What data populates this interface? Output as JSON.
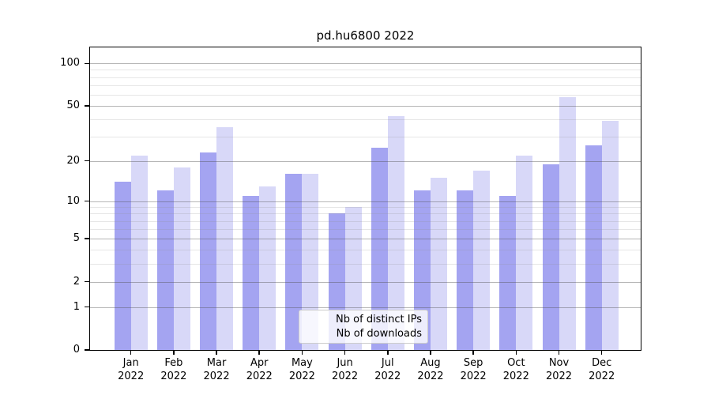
{
  "title": "pd.hu6800 2022",
  "chart_data": {
    "type": "bar",
    "title": "pd.hu6800 2022",
    "categories": [
      "Jan\n2022",
      "Feb\n2022",
      "Mar\n2022",
      "Apr\n2022",
      "May\n2022",
      "Jun\n2022",
      "Jul\n2022",
      "Aug\n2022",
      "Sep\n2022",
      "Oct\n2022",
      "Nov\n2022",
      "Dec\n2022"
    ],
    "series": [
      {
        "name": "Nb of distinct IPs",
        "key": "distinct-ips",
        "color": "#a4a4f1",
        "values": [
          14,
          12,
          23,
          11,
          16,
          8,
          25,
          12,
          12,
          11,
          19,
          26
        ]
      },
      {
        "name": "Nb of downloads",
        "key": "downloads",
        "color": "#d8d8f8",
        "values": [
          22,
          18,
          35,
          13,
          16,
          9,
          42,
          15,
          17,
          22,
          58,
          39
        ]
      }
    ],
    "xlabel": "",
    "ylabel": "",
    "y_scale": "log1p",
    "y_ticks": [
      0,
      1,
      2,
      5,
      10,
      20,
      50,
      100
    ],
    "y_minor_gridlines": [
      3,
      4,
      6,
      7,
      8,
      9,
      30,
      40,
      60,
      70,
      80,
      90
    ],
    "ylim": [
      0,
      130
    ],
    "grid": true,
    "legend_position": "lower center",
    "colors": {
      "bar_distinct_ips": "#a4a4f1",
      "bar_downloads": "#d8d8f8",
      "major_grid": "#c1c1c1",
      "minor_grid": "#e8e8e8",
      "axis": "#000000",
      "background": "#ffffff"
    }
  }
}
